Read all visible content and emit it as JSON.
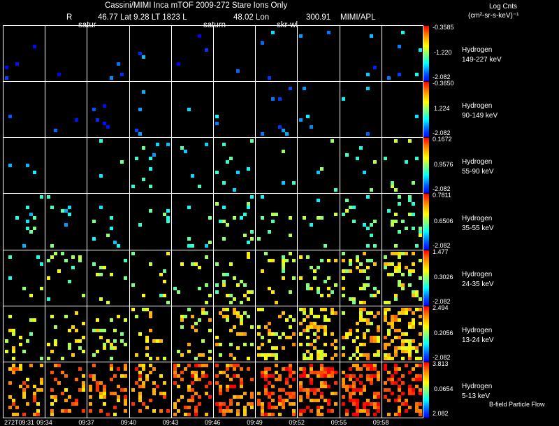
{
  "header": {
    "title": "Cassini/MIMI Inca mTOF  2009-272   Stare   Ions Only",
    "units_line1": "Log Cnts",
    "units_line2": "(cm²-sr-s-keV)⁻¹",
    "r_label": "R",
    "lat_info": "46.77 Lat 9.28 LT 1823 L",
    "lon_info": "48.02 Lon",
    "lon_value": "300.91",
    "source": "MIMI/APL",
    "marker1": "satur",
    "marker2": "saturn",
    "marker3": "skr-wl"
  },
  "footer": {
    "note": "B-field Particle Flow"
  },
  "chart_data": {
    "type": "heatmap",
    "title": "Cassini/MIMI Inca mTOF  2009-272   Stare   Ions Only",
    "x_ticks": [
      "272T09:31",
      "09:34",
      "09:37",
      "09:40",
      "09:43",
      "09:46",
      "09:49",
      "09:52",
      "09:55",
      "09:58"
    ],
    "colorbar_label": "Log Cnts (cm²-sr-s-keV)⁻¹",
    "colors": {
      "low": "#0000ff",
      "mid": "#00ffff",
      "high": "#ff0000",
      "grid": "#ffffff"
    },
    "rows": [
      {
        "species": "Hydrogen",
        "energy": "149-227 keV",
        "cmax": "-0.3585",
        "cmid": "-1.220",
        "cmin": "-2.082",
        "intensity": 0.08,
        "density": 0.012,
        "trend": 0.3
      },
      {
        "species": "Hydrogen",
        "energy": "90-149 keV",
        "cmax": "-0.3650",
        "cmid": "1.224",
        "cmin": "-2.082",
        "intensity": 0.12,
        "density": 0.016,
        "trend": 0.3
      },
      {
        "species": "Hydrogen",
        "energy": "55-90 keV",
        "cmax": "0.1672",
        "cmid": "0.9576",
        "cmin": "-2.082",
        "intensity": 0.32,
        "density": 0.025,
        "trend": 0.5
      },
      {
        "species": "Hydrogen",
        "energy": "35-55 keV",
        "cmax": "0.7811",
        "cmid": "0.6506",
        "cmin": "-2.082",
        "intensity": 0.36,
        "density": 0.04,
        "trend": 1.2
      },
      {
        "species": "Hydrogen",
        "energy": "24-35 keV",
        "cmax": "1.477",
        "cmid": "0.3026",
        "cmin": "-2.082",
        "intensity": 0.5,
        "density": 0.06,
        "trend": 2.5
      },
      {
        "species": "Hydrogen",
        "energy": "13-24 keV",
        "cmax": "2.494",
        "cmid": "0.2056",
        "cmin": "-2.082",
        "intensity": 0.6,
        "density": 0.1,
        "trend": 3.0
      },
      {
        "species": "Hydrogen",
        "energy": "5-13 keV",
        "cmax": "3.813",
        "cmid": "0.0654",
        "cmin": "2.082",
        "intensity": 0.8,
        "density": 0.2,
        "trend": 2.2
      }
    ]
  }
}
